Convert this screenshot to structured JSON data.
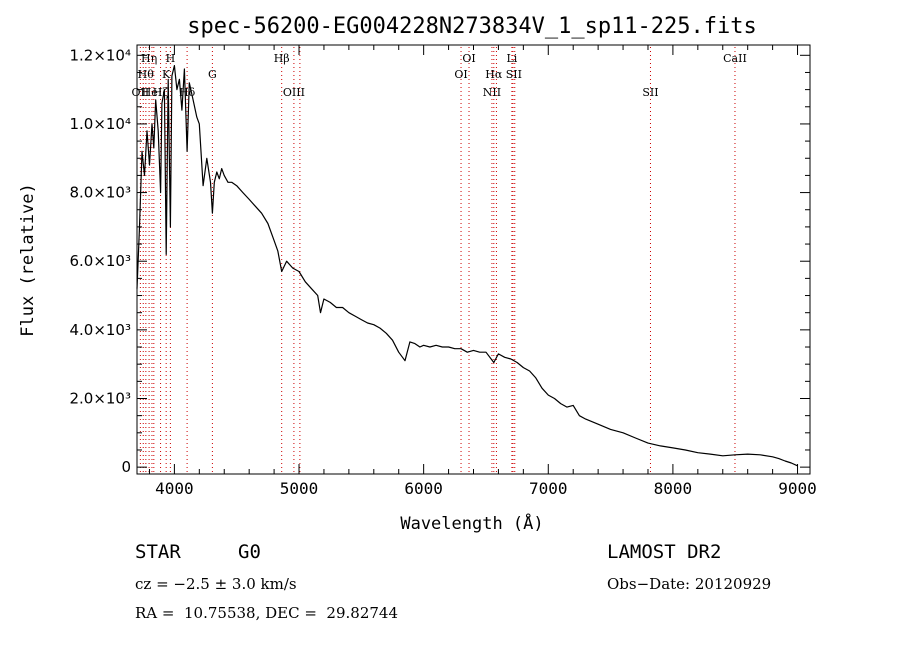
{
  "chart_data": {
    "type": "line",
    "title": "spec-56200-EG004228N273834V_1_sp11-225.fits",
    "xlabel": "Wavelength (Å)",
    "ylabel": "Flux (relative)",
    "xlim": [
      3700,
      9100
    ],
    "ylim": [
      -200,
      12300
    ],
    "x_ticks": [
      4000,
      5000,
      6000,
      7000,
      8000,
      9000
    ],
    "y_ticks": [
      {
        "value": 0,
        "label": "0"
      },
      {
        "value": 2000,
        "label": "2.0×10³"
      },
      {
        "value": 4000,
        "label": "4.0×10³"
      },
      {
        "value": 6000,
        "label": "6.0×10³"
      },
      {
        "value": 8000,
        "label": "8.0×10³"
      },
      {
        "value": 10000,
        "label": "1.0×10⁴"
      },
      {
        "value": 12000,
        "label": "1.2×10⁴"
      }
    ],
    "grid": false,
    "series": [
      {
        "x": [
          3700,
          3720,
          3740,
          3760,
          3780,
          3800,
          3820,
          3835,
          3850,
          3870,
          3889,
          3900,
          3920,
          3934,
          3950,
          3968,
          3980,
          4000,
          4020,
          4040,
          4060,
          4080,
          4102,
          4120,
          4150,
          4180,
          4200,
          4230,
          4260,
          4290,
          4305,
          4320,
          4340,
          4360,
          4380,
          4400,
          4430,
          4460,
          4500,
          4550,
          4600,
          4650,
          4700,
          4750,
          4800,
          4830,
          4861,
          4900,
          4950,
          5000,
          5050,
          5100,
          5150,
          5172,
          5200,
          5250,
          5300,
          5350,
          5400,
          5450,
          5500,
          5550,
          5600,
          5650,
          5700,
          5750,
          5800,
          5850,
          5890,
          5930,
          5970,
          6000,
          6050,
          6100,
          6150,
          6200,
          6250,
          6300,
          6350,
          6400,
          6450,
          6500,
          6563,
          6600,
          6650,
          6700,
          6750,
          6800,
          6850,
          6900,
          6950,
          7000,
          7050,
          7100,
          7150,
          7200,
          7250,
          7300,
          7400,
          7500,
          7600,
          7700,
          7800,
          7900,
          8000,
          8100,
          8200,
          8300,
          8400,
          8500,
          8600,
          8700,
          8800,
          8850,
          8900,
          8950,
          9000
        ],
        "y": [
          5200,
          7000,
          9200,
          8500,
          9800,
          8800,
          10000,
          9300,
          10700,
          9800,
          8000,
          10600,
          11000,
          6200,
          11300,
          7000,
          11400,
          11700,
          11000,
          11300,
          10400,
          11600,
          9200,
          11200,
          10700,
          10200,
          10000,
          8200,
          9000,
          8300,
          7400,
          8300,
          8600,
          8400,
          8700,
          8500,
          8300,
          8300,
          8200,
          8000,
          7800,
          7600,
          7400,
          7100,
          6600,
          6300,
          5700,
          6000,
          5800,
          5700,
          5400,
          5200,
          5000,
          4500,
          4900,
          4800,
          4650,
          4650,
          4500,
          4400,
          4300,
          4200,
          4150,
          4050,
          3900,
          3700,
          3350,
          3100,
          3650,
          3600,
          3500,
          3550,
          3500,
          3550,
          3500,
          3500,
          3450,
          3450,
          3350,
          3400,
          3350,
          3350,
          3050,
          3300,
          3200,
          3150,
          3050,
          2900,
          2800,
          2600,
          2300,
          2100,
          2000,
          1850,
          1750,
          1800,
          1500,
          1400,
          1250,
          1100,
          1000,
          850,
          700,
          620,
          560,
          500,
          420,
          380,
          330,
          360,
          380,
          360,
          300,
          250,
          180,
          120,
          40
        ]
      }
    ],
    "line_labels": [
      {
        "wavelength": 3727,
        "label": "OII",
        "row": 3
      },
      {
        "wavelength": 3770,
        "label": "Hθ",
        "row": 2
      },
      {
        "wavelength": 3797,
        "label": "Hη",
        "row": 1
      },
      {
        "wavelength": 3820,
        "label": "HeI",
        "row": 3
      },
      {
        "wavelength": 3889,
        "label": "Hζ",
        "row": 3
      },
      {
        "wavelength": 3934,
        "label": "K",
        "row": 2
      },
      {
        "wavelength": 3968,
        "label": "H",
        "row": 1
      },
      {
        "wavelength": 4102,
        "label": "Hδ",
        "row": 3
      },
      {
        "wavelength": 4305,
        "label": "G",
        "row": 2
      },
      {
        "wavelength": 4861,
        "label": "Hβ",
        "row": 1
      },
      {
        "wavelength": 4959,
        "label": "OIII",
        "row": 3
      },
      {
        "wavelength": 6300,
        "label": "OI",
        "row": 2
      },
      {
        "wavelength": 6364,
        "label": "OI",
        "row": 1
      },
      {
        "wavelength": 6548,
        "label": "NII",
        "row": 3
      },
      {
        "wavelength": 6563,
        "label": "Hα",
        "row": 2
      },
      {
        "wavelength": 6708,
        "label": "Li",
        "row": 1
      },
      {
        "wavelength": 6724,
        "label": "SII",
        "row": 2
      },
      {
        "wavelength": 7820,
        "label": "SII",
        "row": 3
      },
      {
        "wavelength": 8498,
        "label": "CaII",
        "row": 1
      }
    ],
    "marker_lines": [
      3727,
      3750,
      3771,
      3797,
      3820,
      3835,
      3889,
      3934,
      3968,
      4102,
      4305,
      4861,
      4959,
      5007,
      6300,
      6364,
      6548,
      6563,
      6584,
      6708,
      6717,
      6731,
      7820,
      8498
    ],
    "marker_color": "#cc0000",
    "line_color": "#000000"
  },
  "info": {
    "class_label": "STAR",
    "subclass_label": "G0",
    "survey": "LAMOST DR2",
    "cz": "cz = −2.5 ± 3.0 km/s",
    "obs_date": "Obs−Date: 20120929",
    "coords": "RA =  10.75538, DEC =  29.82744"
  }
}
